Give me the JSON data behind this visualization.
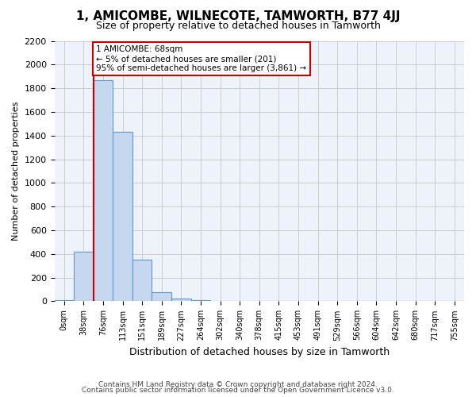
{
  "title": "1, AMICOMBE, WILNECOTE, TAMWORTH, B77 4JJ",
  "subtitle": "Size of property relative to detached houses in Tamworth",
  "xlabel": "Distribution of detached houses by size in Tamworth",
  "ylabel": "Number of detached properties",
  "bar_values": [
    10,
    420,
    1870,
    1430,
    350,
    75,
    25,
    10,
    5,
    2,
    1,
    0,
    0,
    0,
    0,
    0,
    0,
    0,
    0,
    0,
    0
  ],
  "bar_labels": [
    "0sqm",
    "38sqm",
    "76sqm",
    "113sqm",
    "151sqm",
    "189sqm",
    "227sqm",
    "264sqm",
    "302sqm",
    "340sqm",
    "378sqm",
    "415sqm",
    "453sqm",
    "491sqm",
    "529sqm",
    "566sqm",
    "604sqm",
    "642sqm",
    "680sqm",
    "717sqm",
    "755sqm"
  ],
  "bar_color": "#c5d8f0",
  "bar_edge_color": "#5b9bd5",
  "bar_edge_width": 0.8,
  "grid_color": "#cccccc",
  "vline_x": 1.5,
  "property_label": "1 AMICOMBE: 68sqm",
  "annotation_line1": "← 5% of detached houses are smaller (201)",
  "annotation_line2": "95% of semi-detached houses are larger (3,861) →",
  "annotation_box_color": "#ffffff",
  "annotation_box_edge": "#cc0000",
  "vline_color": "#cc0000",
  "ylim": [
    0,
    2200
  ],
  "yticks": [
    0,
    200,
    400,
    600,
    800,
    1000,
    1200,
    1400,
    1600,
    1800,
    2000,
    2200
  ],
  "footer1": "Contains HM Land Registry data © Crown copyright and database right 2024.",
  "footer2": "Contains public sector information licensed under the Open Government Licence v3.0.",
  "bg_color": "#ffffff",
  "plot_bg_color": "#eef2fa"
}
